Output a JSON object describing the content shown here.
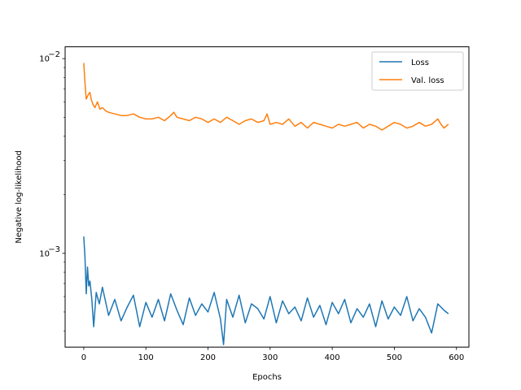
{
  "chart_data": {
    "type": "line",
    "title": "",
    "xlabel": "Epochs",
    "ylabel": "Negative log-likelihood",
    "xlim": [
      -30,
      620
    ],
    "ylim": [
      0.00033,
      0.0115
    ],
    "yscale": "log",
    "xticks": [
      0,
      100,
      200,
      300,
      400,
      500,
      600
    ],
    "yticks": [
      {
        "value": 0.001,
        "base": "10",
        "exp": "−3"
      },
      {
        "value": 0.01,
        "base": "10",
        "exp": "−2"
      }
    ],
    "grid": false,
    "legend_position": "top-right",
    "colors": {
      "loss": "#1f77b4",
      "val_loss": "#ff7f0e"
    },
    "series": [
      {
        "name": "Loss",
        "key": "loss",
        "x": [
          0,
          2,
          4,
          6,
          8,
          10,
          13,
          16,
          20,
          25,
          30,
          40,
          50,
          60,
          70,
          80,
          90,
          100,
          110,
          120,
          130,
          140,
          150,
          160,
          170,
          180,
          190,
          200,
          210,
          220,
          225,
          230,
          240,
          250,
          260,
          270,
          280,
          290,
          300,
          310,
          320,
          330,
          340,
          350,
          360,
          370,
          380,
          390,
          400,
          410,
          420,
          430,
          440,
          450,
          460,
          470,
          480,
          490,
          500,
          510,
          520,
          530,
          540,
          550,
          560,
          570,
          580,
          587
        ],
        "y": [
          0.00122,
          0.00095,
          0.00062,
          0.00085,
          0.00068,
          0.00072,
          0.00058,
          0.00042,
          0.00063,
          0.00055,
          0.00067,
          0.00048,
          0.00058,
          0.00045,
          0.00053,
          0.00061,
          0.00042,
          0.00056,
          0.00047,
          0.00058,
          0.00045,
          0.00062,
          0.00051,
          0.00043,
          0.00059,
          0.00048,
          0.00055,
          0.0005,
          0.00063,
          0.00046,
          0.00034,
          0.00058,
          0.00047,
          0.00061,
          0.00044,
          0.00055,
          0.00052,
          0.00046,
          0.0006,
          0.00044,
          0.00057,
          0.00049,
          0.00053,
          0.00045,
          0.00059,
          0.00047,
          0.00054,
          0.00043,
          0.00056,
          0.00049,
          0.00058,
          0.00044,
          0.00052,
          0.00047,
          0.00055,
          0.00042,
          0.00057,
          0.00046,
          0.00053,
          0.00048,
          0.0006,
          0.00045,
          0.00052,
          0.00047,
          0.00039,
          0.00055,
          0.00051,
          0.00049
        ]
      },
      {
        "name": "Val. loss",
        "key": "val_loss",
        "x": [
          0,
          2,
          4,
          6,
          8,
          10,
          12,
          15,
          18,
          22,
          26,
          30,
          35,
          40,
          50,
          60,
          70,
          80,
          90,
          100,
          110,
          120,
          130,
          140,
          145,
          150,
          160,
          170,
          180,
          190,
          200,
          210,
          220,
          230,
          240,
          250,
          260,
          270,
          280,
          290,
          295,
          300,
          310,
          320,
          330,
          340,
          350,
          360,
          370,
          380,
          390,
          400,
          410,
          420,
          430,
          440,
          450,
          460,
          470,
          480,
          490,
          500,
          510,
          520,
          530,
          540,
          550,
          560,
          570,
          575,
          580,
          587
        ],
        "y": [
          0.0095,
          0.0075,
          0.0062,
          0.0064,
          0.0066,
          0.0067,
          0.0062,
          0.0058,
          0.0056,
          0.006,
          0.0055,
          0.0056,
          0.0054,
          0.0053,
          0.0052,
          0.0051,
          0.0051,
          0.0052,
          0.005,
          0.0049,
          0.0049,
          0.005,
          0.0048,
          0.0051,
          0.0053,
          0.005,
          0.0049,
          0.0048,
          0.005,
          0.0049,
          0.0047,
          0.0049,
          0.0047,
          0.005,
          0.0048,
          0.0046,
          0.0048,
          0.0049,
          0.0047,
          0.0048,
          0.0052,
          0.0046,
          0.0047,
          0.0046,
          0.0049,
          0.0045,
          0.0047,
          0.0044,
          0.0047,
          0.0046,
          0.0045,
          0.0044,
          0.0046,
          0.0045,
          0.0046,
          0.0047,
          0.0044,
          0.0046,
          0.0045,
          0.0043,
          0.0045,
          0.0047,
          0.0046,
          0.0044,
          0.0045,
          0.0047,
          0.0045,
          0.0046,
          0.0049,
          0.0046,
          0.0044,
          0.0046
        ]
      }
    ]
  }
}
